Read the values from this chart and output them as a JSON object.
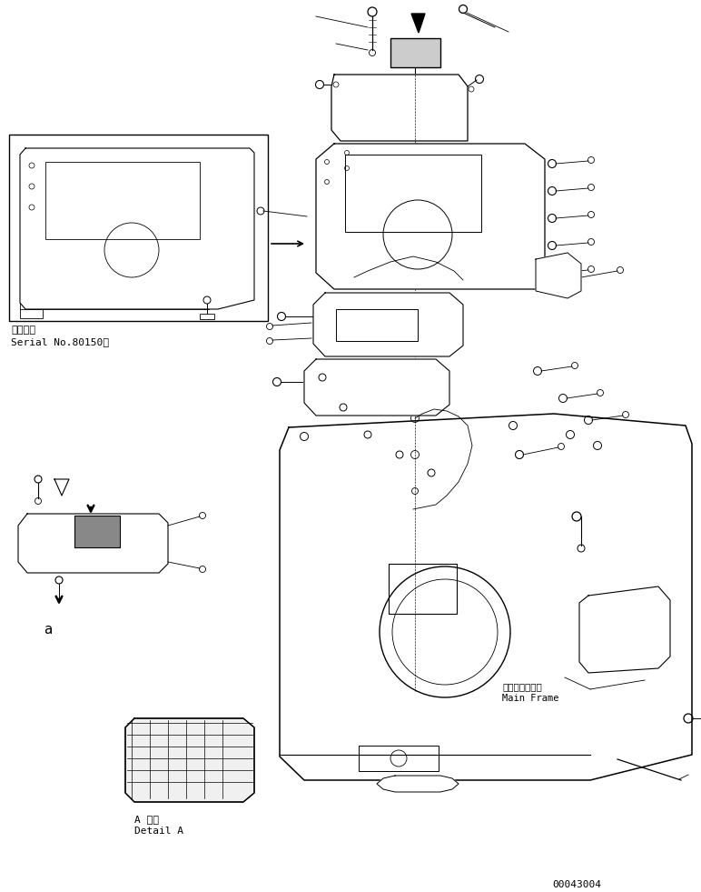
{
  "figure_width": 7.72,
  "figure_height": 9.81,
  "dpi": 100,
  "bg_color": "#ffffff",
  "line_color": "#000000",
  "line_width": 0.7,
  "serial_text_line1": "適用号機",
  "serial_text_line2": "Serial No.80150〜",
  "main_frame_text_line1": "メインフレーム",
  "main_frame_text_line2": "Main Frame",
  "detail_a_text_line1": "A 詳細",
  "detail_a_text_line2": "Detail A",
  "part_number": "00043004",
  "font_size_small": 7,
  "font_size_medium": 8,
  "font_size_large": 9
}
